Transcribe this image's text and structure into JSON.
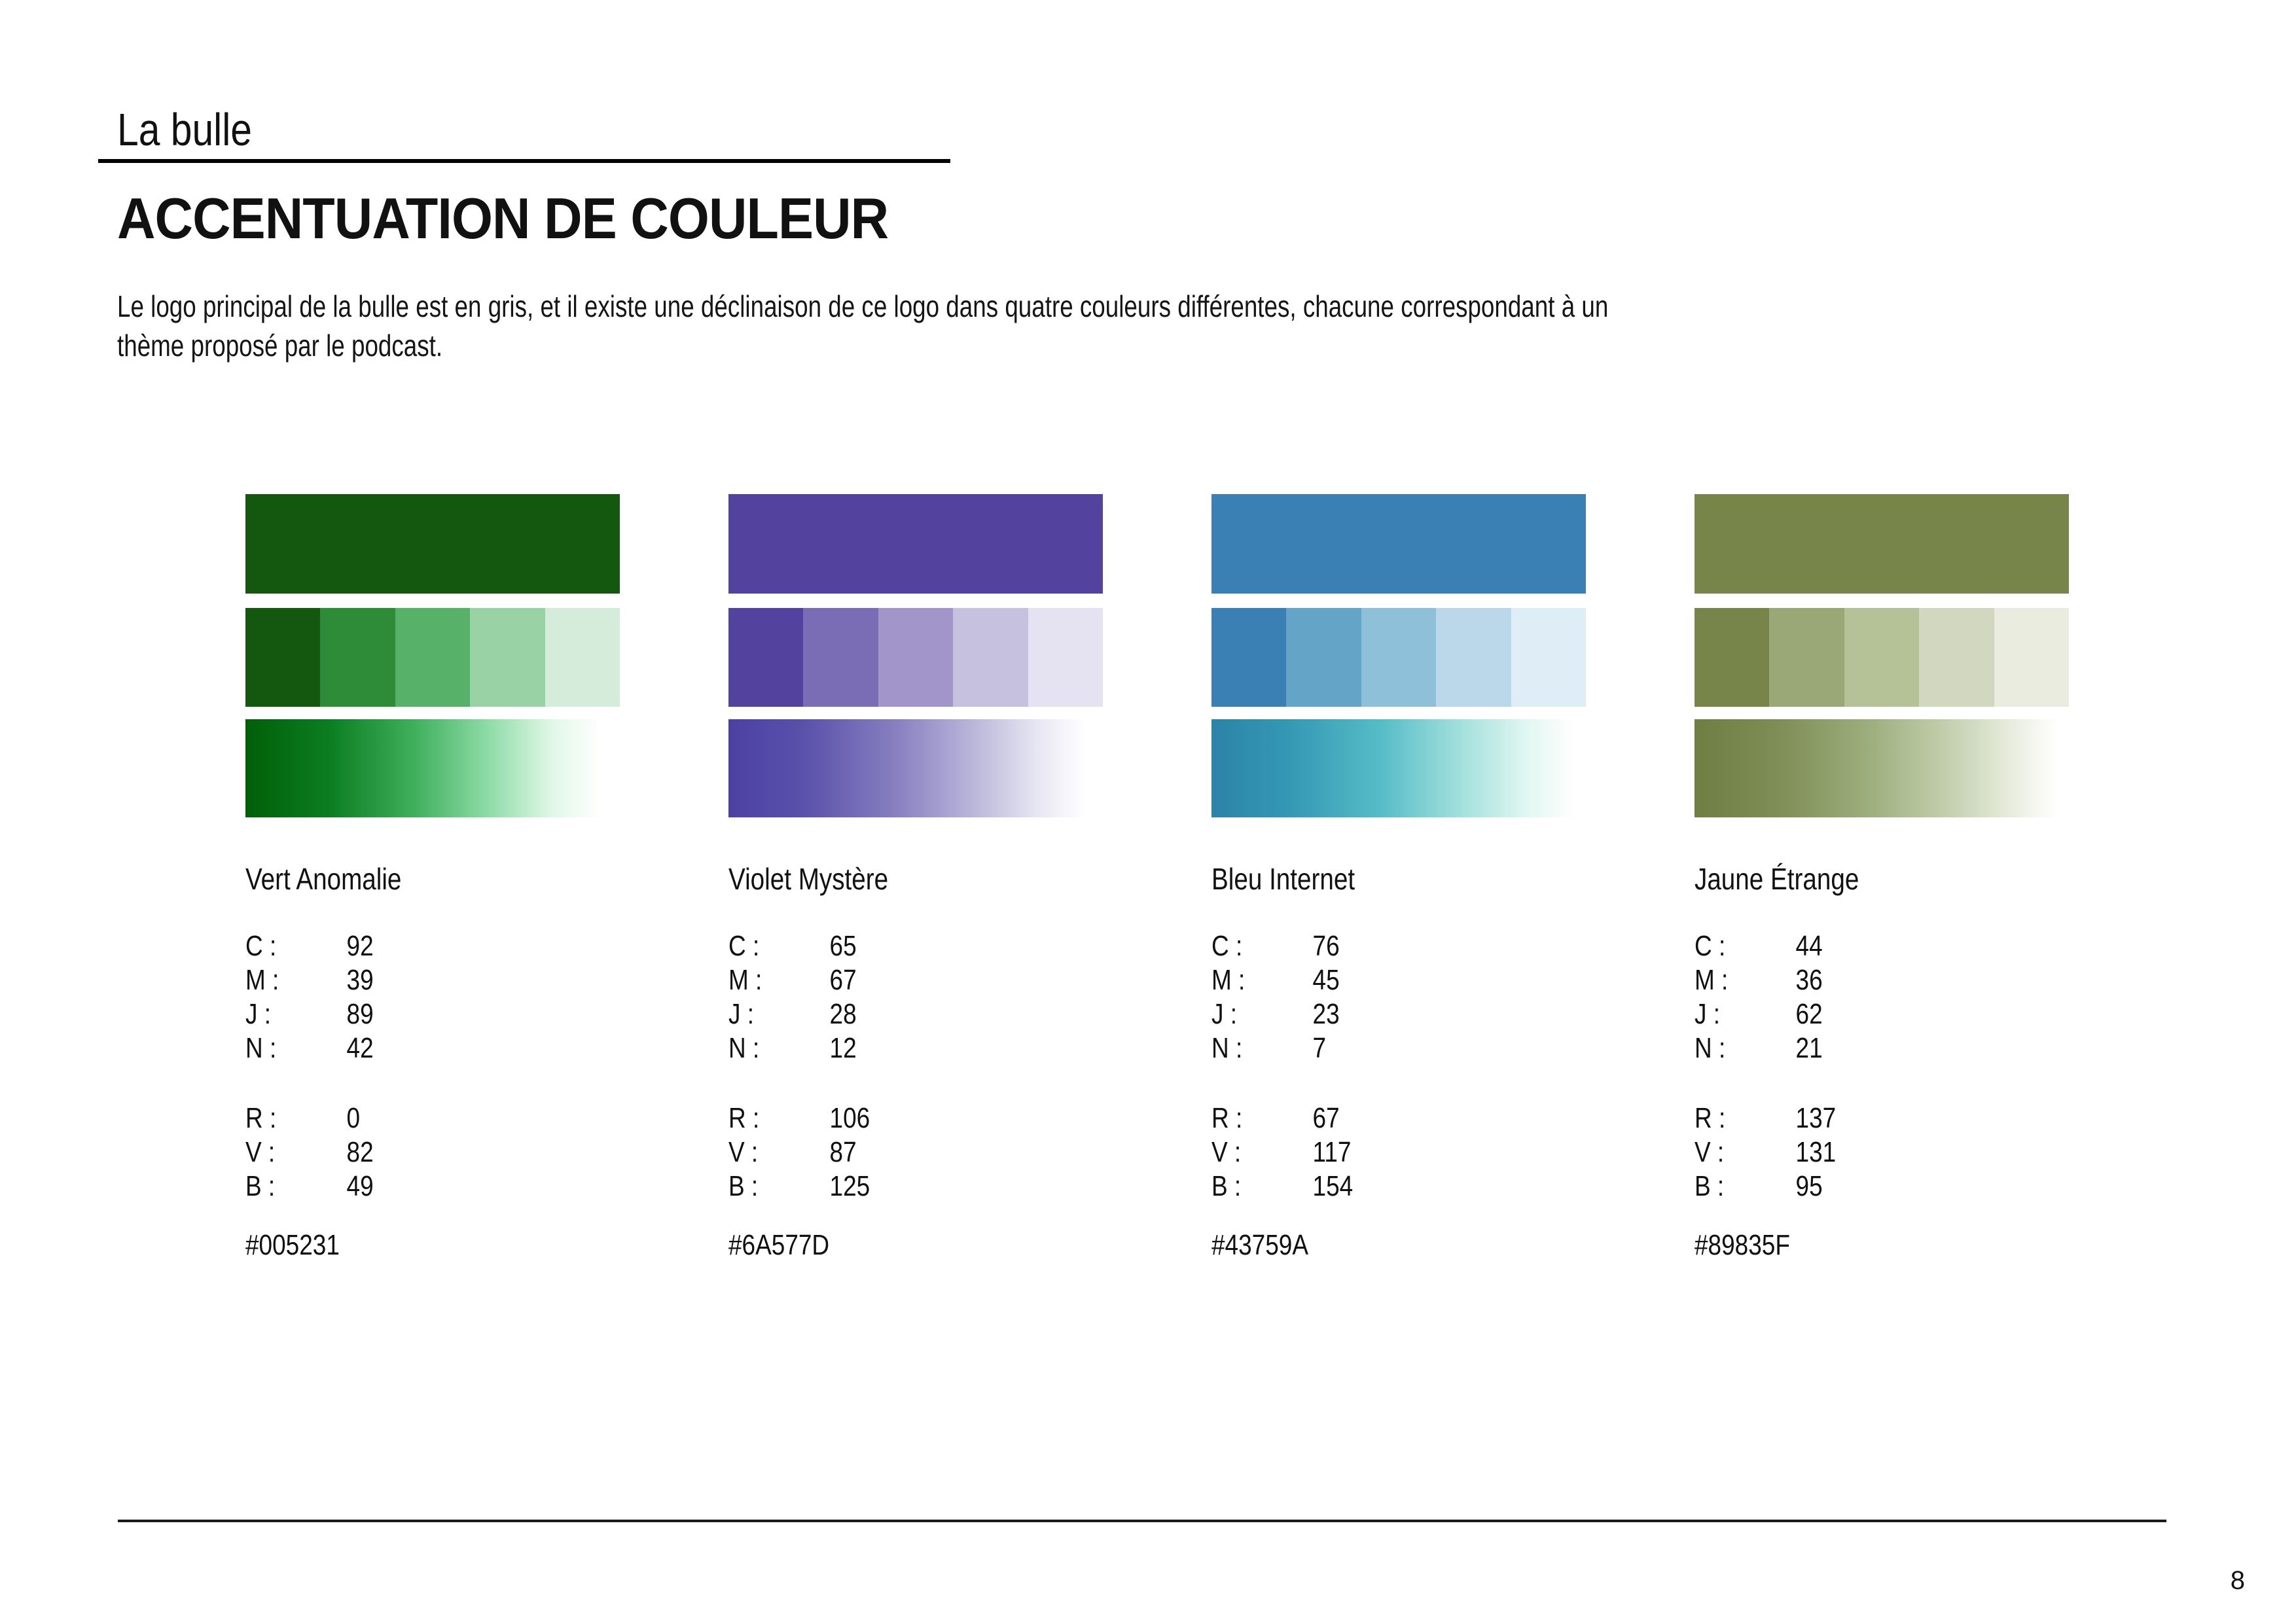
{
  "page": {
    "brand": "La bulle",
    "title": "ACCENTUATION DE COULEUR",
    "intro_line1": "Le logo principal de la bulle est en gris, et il existe une déclinaison de ce logo dans quatre couleurs différentes, chacune correspondant à un",
    "intro_line2": "thème proposé par le podcast.",
    "page_number": "8"
  },
  "labels": {
    "c": "C :",
    "m": "M :",
    "j": "J :",
    "n": "N :",
    "r": "R :",
    "v": "V :",
    "b": "B :"
  },
  "swatches": [
    {
      "name": "Vert Anomalie",
      "cmjn": {
        "c": "92",
        "m": "39",
        "j": "89",
        "n": "42"
      },
      "rvb": {
        "r": "0",
        "v": "82",
        "b": "49"
      },
      "hex": "#005231",
      "solid": "#14570F",
      "tints": [
        "#14570F",
        "#2E8C38",
        "#57B168",
        "#99D3A5",
        "#D6ECDB"
      ],
      "gradient": [
        "#015F08 0%",
        "#0B7D20 22%",
        "#3FAF5C 45%",
        "#8FDCA8 65%",
        "#E2F7E8 82%",
        "#FFFFFF 95%"
      ]
    },
    {
      "name": "Violet Mystère",
      "cmjn": {
        "c": "65",
        "m": "67",
        "j": "28",
        "n": "12"
      },
      "rvb": {
        "r": "106",
        "v": "87",
        "b": "125"
      },
      "hex": "#6A577D",
      "solid": "#53429E",
      "tints": [
        "#53429E",
        "#7A6CB5",
        "#A195C9",
        "#C6C1DF",
        "#E5E3F1"
      ],
      "gradient": [
        "#4C40A2 0%",
        "#5A51AB 20%",
        "#8880C0 45%",
        "#B9B5D9 65%",
        "#E6E5F2 82%",
        "#FFFFFF 95%"
      ]
    },
    {
      "name": "Bleu Internet",
      "cmjn": {
        "c": "76",
        "m": "45",
        "j": "23",
        "n": "7"
      },
      "rvb": {
        "r": "67",
        "v": "117",
        "b": "154"
      },
      "hex": "#43759A",
      "solid": "#3A80B5",
      "tints": [
        "#3A80B5",
        "#63A4C7",
        "#8FC0D9",
        "#BAD8EA",
        "#DEEDF6"
      ],
      "gradient": [
        "#2C83A8 0%",
        "#359AB4 22%",
        "#55BCC7 45%",
        "#A8E2DE 68%",
        "#E4F7F2 85%",
        "#FFFFFF 97%"
      ]
    },
    {
      "name": "Jaune Étrange",
      "cmjn": {
        "c": "44",
        "m": "36",
        "j": "62",
        "n": "21"
      },
      "rvb": {
        "r": "137",
        "v": "131",
        "b": "95"
      },
      "hex": "#89835F",
      "solid": "#78854A",
      "tints": [
        "#78854A",
        "#9AA878",
        "#B5C196",
        "#D1D8BF",
        "#EAECDF"
      ],
      "gradient": [
        "#6F7E43 0%",
        "#7E8D55 22%",
        "#9FB080 48%",
        "#C8D3B4 70%",
        "#E9EDDF 85%",
        "#FFFFFF 97%"
      ]
    }
  ]
}
